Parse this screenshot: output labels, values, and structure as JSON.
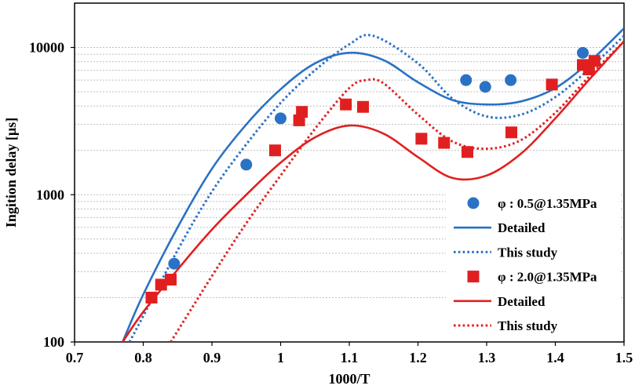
{
  "chart_data": {
    "type": "scatter",
    "title": "",
    "xlabel": "1000/T",
    "ylabel": "Ingition delay [µs]",
    "xlim": [
      0.7,
      1.5
    ],
    "ylim": [
      100,
      20000
    ],
    "yscale": "log",
    "x_ticks": [
      {
        "value": 0.7,
        "label": "0.7"
      },
      {
        "value": 0.8,
        "label": "0.8"
      },
      {
        "value": 0.9,
        "label": "0.9"
      },
      {
        "value": 1.0,
        "label": "1"
      },
      {
        "value": 1.1,
        "label": "1.1"
      },
      {
        "value": 1.2,
        "label": "1.2"
      },
      {
        "value": 1.3,
        "label": "1.3"
      },
      {
        "value": 1.4,
        "label": "1.4"
      },
      {
        "value": 1.5,
        "label": "1.5"
      }
    ],
    "y_ticks": [
      {
        "value": 100,
        "label": "100"
      },
      {
        "value": 1000,
        "label": "1000"
      },
      {
        "value": 10000,
        "label": "10000"
      }
    ],
    "grid": "horizontal minor dotted",
    "legend_position": "bottom-right",
    "series": [
      {
        "name": "φ : 0.5@1.35MPa",
        "kind": "markers",
        "marker": "circle",
        "color": "#2a72c4",
        "points": [
          {
            "x": 0.845,
            "y": 340
          },
          {
            "x": 0.95,
            "y": 1600
          },
          {
            "x": 1.0,
            "y": 3300
          },
          {
            "x": 1.27,
            "y": 6000
          },
          {
            "x": 1.298,
            "y": 5400
          },
          {
            "x": 1.335,
            "y": 6000
          },
          {
            "x": 1.44,
            "y": 9200
          }
        ]
      },
      {
        "name": "Detailed",
        "kind": "line",
        "dash": "solid",
        "color": "#2a72c4",
        "points": [
          {
            "x": 0.77,
            "y": 100
          },
          {
            "x": 0.8,
            "y": 210
          },
          {
            "x": 0.85,
            "y": 600
          },
          {
            "x": 0.9,
            "y": 1500
          },
          {
            "x": 0.95,
            "y": 3000
          },
          {
            "x": 1.0,
            "y": 5200
          },
          {
            "x": 1.05,
            "y": 7800
          },
          {
            "x": 1.1,
            "y": 9200
          },
          {
            "x": 1.15,
            "y": 8200
          },
          {
            "x": 1.2,
            "y": 5800
          },
          {
            "x": 1.25,
            "y": 4400
          },
          {
            "x": 1.3,
            "y": 4100
          },
          {
            "x": 1.35,
            "y": 4300
          },
          {
            "x": 1.4,
            "y": 5300
          },
          {
            "x": 1.45,
            "y": 8000
          },
          {
            "x": 1.5,
            "y": 13500
          }
        ]
      },
      {
        "name": "This study",
        "kind": "line",
        "dash": "dotted",
        "color": "#2a72c4",
        "points": [
          {
            "x": 0.78,
            "y": 100
          },
          {
            "x": 0.8,
            "y": 150
          },
          {
            "x": 0.85,
            "y": 420
          },
          {
            "x": 0.9,
            "y": 1050
          },
          {
            "x": 0.95,
            "y": 2200
          },
          {
            "x": 1.0,
            "y": 4200
          },
          {
            "x": 1.05,
            "y": 7000
          },
          {
            "x": 1.1,
            "y": 10500
          },
          {
            "x": 1.135,
            "y": 12000
          },
          {
            "x": 1.2,
            "y": 7800
          },
          {
            "x": 1.25,
            "y": 4500
          },
          {
            "x": 1.3,
            "y": 3400
          },
          {
            "x": 1.35,
            "y": 3500
          },
          {
            "x": 1.4,
            "y": 4600
          },
          {
            "x": 1.45,
            "y": 7200
          },
          {
            "x": 1.5,
            "y": 12000
          }
        ]
      },
      {
        "name": "φ : 2.0@1.35MPa",
        "kind": "markers",
        "marker": "square",
        "color": "#e02020",
        "points": [
          {
            "x": 0.812,
            "y": 200
          },
          {
            "x": 0.826,
            "y": 245
          },
          {
            "x": 0.84,
            "y": 265
          },
          {
            "x": 0.992,
            "y": 2000
          },
          {
            "x": 1.027,
            "y": 3200
          },
          {
            "x": 1.031,
            "y": 3650
          },
          {
            "x": 1.095,
            "y": 4100
          },
          {
            "x": 1.12,
            "y": 3950
          },
          {
            "x": 1.205,
            "y": 2400
          },
          {
            "x": 1.238,
            "y": 2250
          },
          {
            "x": 1.272,
            "y": 1950
          },
          {
            "x": 1.336,
            "y": 2650
          },
          {
            "x": 1.395,
            "y": 5600
          },
          {
            "x": 1.44,
            "y": 7600
          },
          {
            "x": 1.449,
            "y": 7100
          },
          {
            "x": 1.457,
            "y": 8100
          }
        ]
      },
      {
        "name": "Detailed",
        "kind": "line",
        "dash": "solid",
        "color": "#e02020",
        "points": [
          {
            "x": 0.77,
            "y": 100
          },
          {
            "x": 0.8,
            "y": 160
          },
          {
            "x": 0.85,
            "y": 310
          },
          {
            "x": 0.9,
            "y": 580
          },
          {
            "x": 0.95,
            "y": 1000
          },
          {
            "x": 1.0,
            "y": 1650
          },
          {
            "x": 1.05,
            "y": 2450
          },
          {
            "x": 1.1,
            "y": 2950
          },
          {
            "x": 1.15,
            "y": 2600
          },
          {
            "x": 1.2,
            "y": 1800
          },
          {
            "x": 1.25,
            "y": 1300
          },
          {
            "x": 1.3,
            "y": 1350
          },
          {
            "x": 1.35,
            "y": 1900
          },
          {
            "x": 1.4,
            "y": 3300
          },
          {
            "x": 1.45,
            "y": 6100
          },
          {
            "x": 1.5,
            "y": 11000
          }
        ]
      },
      {
        "name": "This study",
        "kind": "line",
        "dash": "dotted",
        "color": "#e02020",
        "points": [
          {
            "x": 0.84,
            "y": 100
          },
          {
            "x": 0.9,
            "y": 280
          },
          {
            "x": 0.95,
            "y": 640
          },
          {
            "x": 1.0,
            "y": 1350
          },
          {
            "x": 1.05,
            "y": 2800
          },
          {
            "x": 1.1,
            "y": 5300
          },
          {
            "x": 1.125,
            "y": 6000
          },
          {
            "x": 1.15,
            "y": 5700
          },
          {
            "x": 1.2,
            "y": 3500
          },
          {
            "x": 1.25,
            "y": 2300
          },
          {
            "x": 1.3,
            "y": 2050
          },
          {
            "x": 1.35,
            "y": 2350
          },
          {
            "x": 1.4,
            "y": 3600
          },
          {
            "x": 1.45,
            "y": 6400
          },
          {
            "x": 1.5,
            "y": 11000
          }
        ]
      }
    ]
  }
}
